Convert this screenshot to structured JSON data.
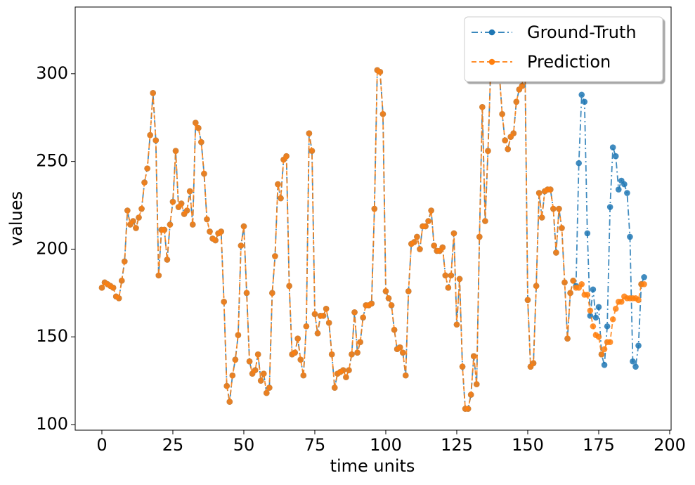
{
  "chart_data": {
    "type": "line",
    "x_label": "time units",
    "y_label": "values",
    "x": [
      0,
      1,
      2,
      3,
      4,
      5,
      6,
      7,
      8,
      9,
      10,
      11,
      12,
      13,
      14,
      15,
      16,
      17,
      18,
      19,
      20,
      21,
      22,
      23,
      24,
      25,
      26,
      27,
      28,
      29,
      30,
      31,
      32,
      33,
      34,
      35,
      36,
      37,
      38,
      39,
      40,
      41,
      42,
      43,
      44,
      45,
      46,
      47,
      48,
      49,
      50,
      51,
      52,
      53,
      54,
      55,
      56,
      57,
      58,
      59,
      60,
      61,
      62,
      63,
      64,
      65,
      66,
      67,
      68,
      69,
      70,
      71,
      72,
      73,
      74,
      75,
      76,
      77,
      78,
      79,
      80,
      81,
      82,
      83,
      84,
      85,
      86,
      87,
      88,
      89,
      90,
      91,
      92,
      93,
      94,
      95,
      96,
      97,
      98,
      99,
      100,
      101,
      102,
      103,
      104,
      105,
      106,
      107,
      108,
      109,
      110,
      111,
      112,
      113,
      114,
      115,
      116,
      117,
      118,
      119,
      120,
      121,
      122,
      123,
      124,
      125,
      126,
      127,
      128,
      129,
      130,
      131,
      132,
      133,
      134,
      135,
      136,
      137,
      138,
      139,
      140,
      141,
      142,
      143,
      144,
      145,
      146,
      147,
      148,
      149,
      150,
      151,
      152,
      153,
      154,
      155,
      156,
      157,
      158,
      159,
      160,
      161,
      162,
      163,
      164,
      165,
      166,
      167,
      168,
      169,
      170,
      171,
      172,
      173,
      174,
      175,
      176,
      177,
      178,
      179,
      180,
      181,
      182,
      183,
      184,
      185,
      186,
      187,
      188,
      189,
      190,
      191
    ],
    "series": [
      {
        "name": "Ground-Truth",
        "color": "#1f77b4",
        "dash": "dashdot",
        "values": [
          178,
          181,
          180,
          179,
          178,
          173,
          172,
          182,
          193,
          222,
          214,
          216,
          212,
          218,
          223,
          238,
          246,
          265,
          289,
          262,
          185,
          211,
          211,
          194,
          214,
          227,
          256,
          224,
          226,
          220,
          222,
          233,
          214,
          272,
          269,
          261,
          243,
          217,
          210,
          206,
          205,
          209,
          210,
          170,
          122,
          113,
          128,
          137,
          151,
          202,
          213,
          175,
          136,
          129,
          131,
          140,
          125,
          129,
          118,
          121,
          175,
          196,
          237,
          229,
          251,
          253,
          179,
          140,
          141,
          149,
          137,
          128,
          156,
          266,
          256,
          163,
          152,
          162,
          162,
          166,
          158,
          140,
          121,
          129,
          130,
          131,
          127,
          131,
          140,
          164,
          141,
          147,
          161,
          168,
          168,
          169,
          223,
          302,
          301,
          277,
          176,
          172,
          168,
          154,
          143,
          144,
          141,
          128,
          176,
          203,
          204,
          207,
          200,
          213,
          213,
          216,
          222,
          202,
          199,
          199,
          201,
          185,
          178,
          185,
          209,
          157,
          183,
          133,
          109,
          109,
          117,
          139,
          123,
          207,
          281,
          216,
          256,
          305,
          320,
          315,
          300,
          277,
          262,
          257,
          264,
          266,
          284,
          291,
          293,
          310,
          171,
          133,
          135,
          179,
          232,
          218,
          233,
          234,
          234,
          223,
          198,
          223,
          212,
          181,
          149,
          175,
          182,
          179,
          249,
          288,
          284,
          209,
          162,
          177,
          161,
          167,
          140,
          134,
          156,
          224,
          258,
          253,
          234,
          239,
          237,
          232,
          207,
          136,
          133,
          145,
          180,
          184
        ]
      },
      {
        "name": "Prediction",
        "color": "#ff7f0e",
        "dash": "dashed",
        "values": [
          178,
          181,
          180,
          179,
          178,
          173,
          172,
          182,
          193,
          222,
          214,
          216,
          212,
          218,
          223,
          238,
          246,
          265,
          289,
          262,
          185,
          211,
          211,
          194,
          214,
          227,
          256,
          224,
          226,
          220,
          222,
          233,
          214,
          272,
          269,
          261,
          243,
          217,
          210,
          206,
          205,
          209,
          210,
          170,
          122,
          113,
          128,
          137,
          151,
          202,
          213,
          175,
          136,
          129,
          131,
          140,
          125,
          129,
          118,
          121,
          175,
          196,
          237,
          229,
          251,
          253,
          179,
          140,
          141,
          149,
          137,
          128,
          156,
          266,
          256,
          163,
          152,
          162,
          162,
          166,
          158,
          140,
          121,
          129,
          130,
          131,
          127,
          131,
          140,
          164,
          141,
          147,
          161,
          168,
          168,
          169,
          223,
          302,
          301,
          277,
          176,
          172,
          168,
          154,
          143,
          144,
          141,
          128,
          176,
          203,
          204,
          207,
          200,
          213,
          213,
          216,
          222,
          202,
          199,
          199,
          201,
          185,
          178,
          185,
          209,
          157,
          183,
          133,
          109,
          109,
          117,
          139,
          123,
          207,
          281,
          216,
          256,
          305,
          320,
          315,
          300,
          277,
          262,
          257,
          264,
          266,
          284,
          291,
          293,
          310,
          171,
          133,
          135,
          179,
          232,
          218,
          233,
          234,
          234,
          223,
          198,
          223,
          212,
          181,
          149,
          175,
          182,
          178,
          178,
          180,
          174,
          174,
          165,
          156,
          151,
          150,
          140,
          143,
          147,
          147,
          160,
          166,
          170,
          170,
          173,
          172,
          172,
          172,
          172,
          171,
          180,
          180
        ]
      }
    ],
    "xlim": [
      -9.4,
      200.5
    ],
    "ylim": [
      96.8,
      338
    ],
    "xticks": [
      0,
      25,
      50,
      75,
      100,
      125,
      150,
      175,
      200
    ],
    "yticks": [
      100,
      150,
      200,
      250,
      300
    ],
    "legend": "upper right"
  }
}
